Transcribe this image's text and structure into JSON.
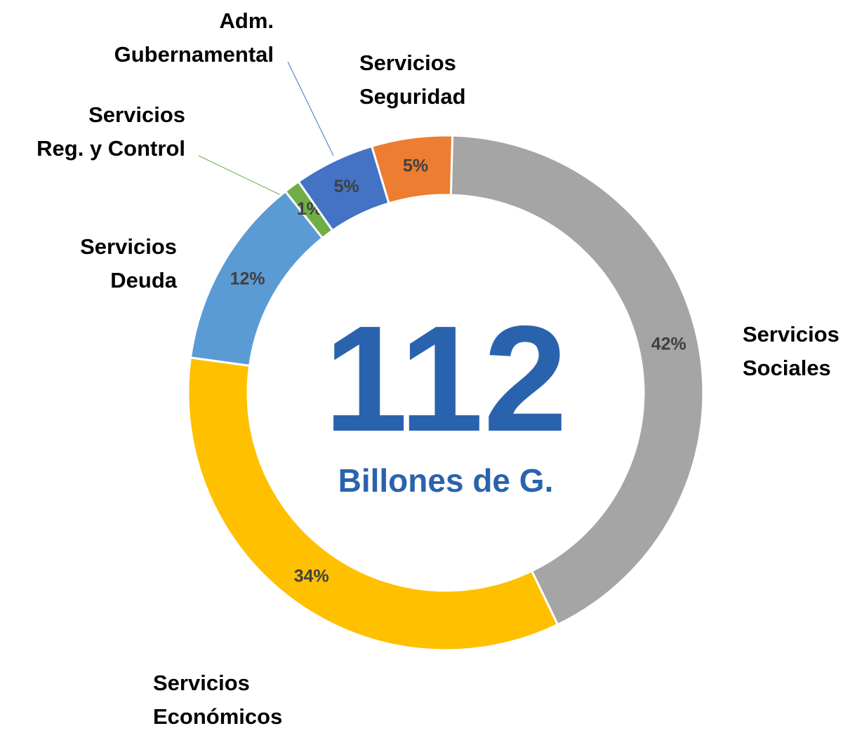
{
  "chart_data": {
    "type": "donut",
    "center_value": "112",
    "center_label": "Billones de G.",
    "categories": [
      "Servicios\nSociales",
      "Servicios\nEconómicos",
      "Servicios\nDeuda",
      "Servicios\nReg. y Control",
      "Adm.\nGubernamental",
      "Servicios\nSeguridad"
    ],
    "values": [
      42,
      34,
      12,
      1,
      5,
      5
    ],
    "value_labels": [
      "42%",
      "34%",
      "12%",
      "1%",
      "5%",
      "5%"
    ],
    "colors": [
      "#a5a5a5",
      "#ffc000",
      "#5b9bd5",
      "#70ad47",
      "#4472c4",
      "#ed7d31"
    ]
  }
}
